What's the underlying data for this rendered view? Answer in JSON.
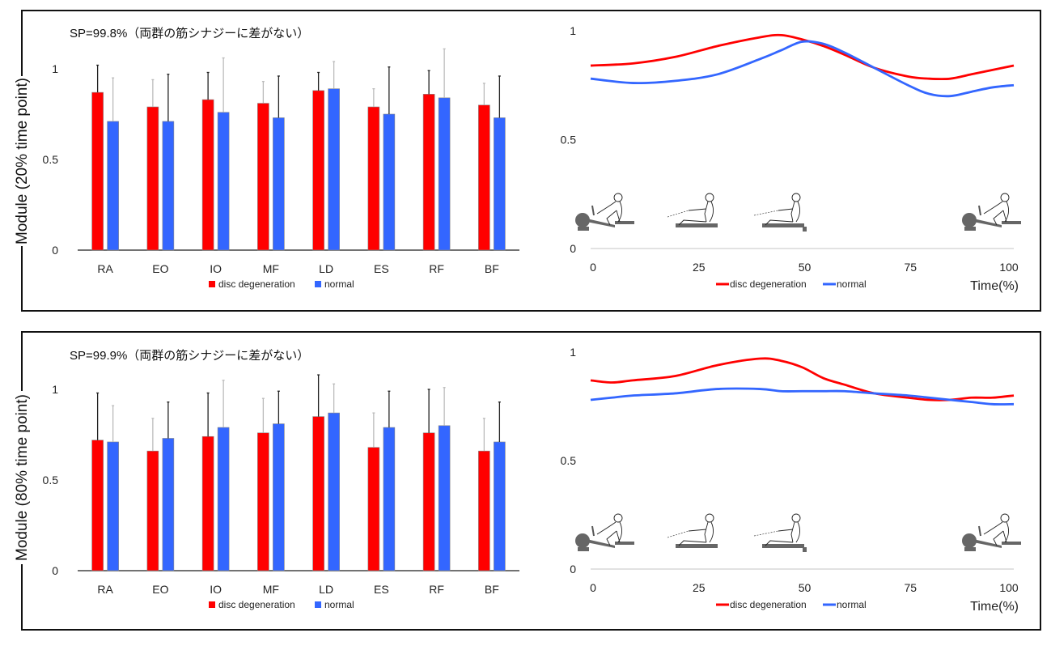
{
  "colors": {
    "disc_degeneration": "#ff0000",
    "normal": "#3366ff",
    "axis": "#555555",
    "gridline": "#d0d0d0"
  },
  "panels": [
    {
      "ylabel": "Module (20% time point)",
      "sp_text": "SP=99.8%（両群の筋シナジーに差がない）"
    },
    {
      "ylabel": "Module (80% time point)",
      "sp_text": "SP=99.9%（両群の筋シナジーに差がない）"
    }
  ],
  "chart_data": [
    {
      "type": "bar",
      "title": "SP=99.8%（両群の筋シナジーに差がない）",
      "ylabel": "Module (20% time point)",
      "xlabel": "",
      "categories": [
        "RA",
        "EO",
        "IO",
        "MF",
        "LD",
        "ES",
        "RF",
        "BF"
      ],
      "ylim": [
        0,
        1
      ],
      "yticks": [
        "0",
        "0.5",
        "1"
      ],
      "legend": "bottom",
      "series": [
        {
          "name": "disc degeneration",
          "values": [
            0.87,
            0.79,
            0.83,
            0.81,
            0.88,
            0.79,
            0.86,
            0.8
          ],
          "error_upper": [
            1.02,
            0.94,
            0.98,
            0.93,
            0.98,
            0.89,
            0.99,
            0.92
          ]
        },
        {
          "name": "normal",
          "values": [
            0.71,
            0.71,
            0.76,
            0.73,
            0.89,
            0.75,
            0.84,
            0.73
          ],
          "error_upper": [
            0.95,
            0.97,
            1.06,
            0.96,
            1.04,
            1.01,
            1.11,
            0.96
          ]
        }
      ]
    },
    {
      "type": "line",
      "title": "",
      "xlabel": "Time(%)",
      "ylabel": "",
      "xlim": [
        0,
        100
      ],
      "ylim": [
        0,
        1
      ],
      "xticks": [
        "0",
        "25",
        "50",
        "75",
        "100"
      ],
      "yticks": [
        "0",
        "0.5",
        "1"
      ],
      "legend": "bottom",
      "x": [
        0,
        10,
        20,
        30,
        40,
        45,
        50,
        55,
        60,
        67,
        75,
        80,
        85,
        90,
        95,
        100
      ],
      "series": [
        {
          "name": "disc degeneration",
          "values": [
            0.84,
            0.85,
            0.88,
            0.93,
            0.97,
            0.98,
            0.96,
            0.93,
            0.89,
            0.83,
            0.79,
            0.78,
            0.78,
            0.8,
            0.82,
            0.84
          ]
        },
        {
          "name": "normal",
          "values": [
            0.78,
            0.76,
            0.77,
            0.8,
            0.87,
            0.91,
            0.95,
            0.94,
            0.9,
            0.83,
            0.75,
            0.71,
            0.7,
            0.72,
            0.74,
            0.75
          ]
        }
      ],
      "illustration": "rowing-phases"
    },
    {
      "type": "bar",
      "title": "SP=99.9%（両群の筋シナジーに差がない）",
      "ylabel": "Module (80% time point)",
      "xlabel": "",
      "categories": [
        "RA",
        "EO",
        "IO",
        "MF",
        "LD",
        "ES",
        "RF",
        "BF"
      ],
      "ylim": [
        0,
        1
      ],
      "yticks": [
        "0",
        "0.5",
        "1"
      ],
      "legend": "bottom",
      "series": [
        {
          "name": "disc degeneration",
          "values": [
            0.72,
            0.66,
            0.74,
            0.76,
            0.85,
            0.68,
            0.76,
            0.66
          ],
          "error_upper": [
            0.98,
            0.84,
            0.98,
            0.95,
            1.08,
            0.87,
            1.0,
            0.84
          ]
        },
        {
          "name": "normal",
          "values": [
            0.71,
            0.73,
            0.79,
            0.81,
            0.87,
            0.79,
            0.8,
            0.71
          ],
          "error_upper": [
            0.91,
            0.93,
            1.05,
            0.99,
            1.03,
            0.99,
            1.01,
            0.93
          ]
        }
      ]
    },
    {
      "type": "line",
      "title": "",
      "xlabel": "Time(%)",
      "ylabel": "",
      "xlim": [
        0,
        100
      ],
      "ylim": [
        0,
        1
      ],
      "xticks": [
        "0",
        "25",
        "50",
        "75",
        "100"
      ],
      "yticks": [
        "0",
        "0.5",
        "1"
      ],
      "legend": "bottom",
      "x": [
        0,
        5,
        10,
        20,
        30,
        40,
        45,
        50,
        55,
        60,
        67,
        75,
        80,
        85,
        90,
        95,
        100
      ],
      "series": [
        {
          "name": "disc degeneration",
          "values": [
            0.87,
            0.86,
            0.87,
            0.89,
            0.94,
            0.97,
            0.96,
            0.93,
            0.88,
            0.85,
            0.81,
            0.79,
            0.78,
            0.78,
            0.79,
            0.79,
            0.8
          ]
        },
        {
          "name": "normal",
          "values": [
            0.78,
            0.79,
            0.8,
            0.81,
            0.83,
            0.83,
            0.82,
            0.82,
            0.82,
            0.82,
            0.81,
            0.8,
            0.79,
            0.78,
            0.77,
            0.76,
            0.76
          ]
        }
      ],
      "illustration": "rowing-phases"
    }
  ]
}
